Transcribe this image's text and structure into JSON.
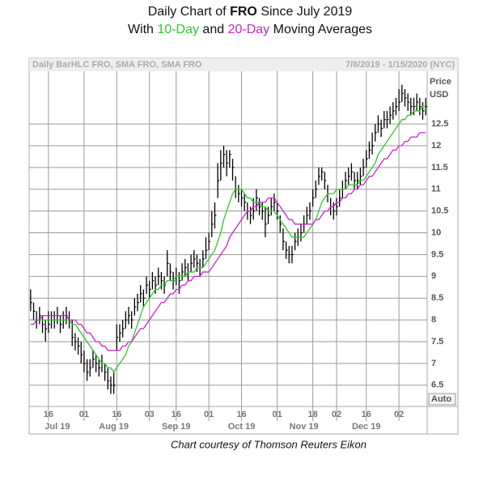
{
  "chart_data": {
    "type": "hlc",
    "title": {
      "lead": "Daily Chart of",
      "ticker": "FRO",
      "tail": "Since July 2019"
    },
    "subtitle": {
      "lead": "With",
      "mid": "and",
      "tail": "Moving Averages"
    },
    "header_left": "Daily BarHLC FRO, SMA FRO, SMA FRO",
    "header_right": "7/8/2019 - 1/15/2020 (NYC)",
    "y_unit_top": "Price",
    "y_unit": "USD",
    "auto_label": "Auto",
    "caption": "Chart courtesy of Thomson Reuters Eikon",
    "bar_color": "#000000",
    "grid": true,
    "ylim": [
      6.05,
      13.71
    ],
    "yticks": [
      6.5,
      7,
      7.5,
      8,
      8.5,
      9,
      9.5,
      10,
      10.5,
      11,
      11.5,
      12,
      12.5
    ],
    "categories": [
      null,
      null,
      null,
      null,
      null,
      null,
      "16",
      null,
      null,
      null,
      null,
      null,
      null,
      null,
      null,
      null,
      null,
      null,
      "01",
      null,
      null,
      null,
      null,
      null,
      null,
      null,
      null,
      null,
      null,
      "16",
      null,
      null,
      null,
      null,
      null,
      null,
      null,
      null,
      null,
      null,
      "03",
      null,
      null,
      null,
      null,
      null,
      null,
      null,
      null,
      "16",
      null,
      null,
      null,
      null,
      null,
      null,
      null,
      null,
      null,
      null,
      "01",
      null,
      null,
      null,
      null,
      null,
      null,
      null,
      null,
      null,
      null,
      "16",
      null,
      null,
      null,
      null,
      null,
      null,
      null,
      null,
      null,
      null,
      null,
      "01",
      null,
      null,
      null,
      null,
      null,
      null,
      null,
      null,
      null,
      null,
      null,
      "18",
      null,
      null,
      null,
      null,
      null,
      null,
      null,
      "02",
      null,
      null,
      null,
      null,
      null,
      null,
      null,
      null,
      null,
      "16",
      null,
      null,
      null,
      null,
      null,
      null,
      null,
      null,
      null,
      null,
      "02",
      null,
      null,
      null,
      null,
      null,
      null,
      null,
      null,
      null
    ],
    "months": [
      null,
      null,
      null,
      null,
      null,
      null,
      null,
      null,
      null,
      "Jul 19",
      null,
      null,
      null,
      null,
      null,
      null,
      null,
      null,
      null,
      null,
      null,
      null,
      null,
      null,
      null,
      null,
      null,
      null,
      "Aug 19",
      null,
      null,
      null,
      null,
      null,
      null,
      null,
      null,
      null,
      null,
      null,
      null,
      null,
      null,
      null,
      null,
      null,
      null,
      null,
      null,
      "Sep 19",
      null,
      null,
      null,
      null,
      null,
      null,
      null,
      null,
      null,
      null,
      null,
      null,
      null,
      null,
      null,
      null,
      null,
      null,
      null,
      null,
      null,
      "Oct 19",
      null,
      null,
      null,
      null,
      null,
      null,
      null,
      null,
      null,
      null,
      null,
      null,
      null,
      null,
      null,
      null,
      null,
      null,
      null,
      null,
      "Nov 19",
      null,
      null,
      null,
      null,
      null,
      null,
      null,
      null,
      null,
      null,
      null,
      null,
      null,
      null,
      null,
      null,
      null,
      null,
      null,
      null,
      "Dec 19",
      null,
      null,
      null,
      null,
      null,
      null,
      null,
      null,
      null,
      null,
      null,
      null,
      null,
      null,
      null,
      null,
      null,
      null,
      null,
      null
    ],
    "high": [
      8.7,
      8.4,
      8.2,
      8.3,
      8.1,
      8.0,
      8.2,
      8.2,
      8.2,
      8.3,
      8.1,
      8.2,
      8.3,
      8.2,
      8.0,
      7.7,
      7.6,
      7.5,
      7.3,
      7.1,
      7.1,
      7.3,
      7.2,
      7.1,
      7.2,
      7.0,
      6.9,
      6.7,
      6.8,
      7.9,
      7.9,
      8.0,
      8.2,
      8.3,
      8.2,
      8.5,
      8.6,
      8.8,
      8.7,
      9.0,
      8.9,
      9.1,
      9.0,
      9.2,
      9.1,
      9.0,
      9.6,
      9.3,
      9.1,
      9.2,
      9.1,
      9.3,
      9.4,
      9.3,
      9.5,
      9.6,
      9.5,
      9.4,
      9.6,
      9.9,
      10.0,
      10.5,
      10.7,
      11.6,
      11.9,
      12.0,
      11.9,
      11.9,
      11.7,
      11.3,
      11.1,
      11.0,
      10.9,
      10.7,
      10.6,
      10.8,
      11.0,
      10.8,
      10.7,
      10.6,
      10.6,
      10.8,
      10.9,
      10.7,
      10.4,
      10.1,
      9.8,
      9.7,
      9.7,
      10.0,
      10.1,
      10.2,
      10.4,
      10.6,
      10.7,
      11.0,
      11.2,
      11.5,
      11.5,
      11.4,
      11.1,
      10.8,
      10.7,
      10.8,
      11.0,
      11.2,
      11.4,
      11.5,
      11.6,
      11.4,
      11.4,
      11.5,
      11.7,
      11.9,
      12.1,
      12.3,
      12.5,
      12.7,
      12.6,
      12.8,
      12.8,
      12.9,
      13.0,
      13.1,
      13.3,
      13.4,
      13.3,
      13.2,
      13.1,
      13.1,
      13.2,
      13.1,
      13.0,
      13.1
    ],
    "low": [
      8.2,
      8.0,
      7.8,
      7.9,
      7.7,
      7.5,
      7.7,
      7.8,
      7.8,
      7.9,
      7.7,
      7.8,
      7.9,
      7.8,
      7.4,
      7.3,
      7.2,
      7.0,
      6.8,
      6.6,
      6.7,
      6.9,
      6.8,
      6.7,
      6.8,
      6.6,
      6.4,
      6.3,
      6.3,
      7.3,
      7.5,
      7.6,
      7.8,
      7.9,
      7.8,
      8.1,
      8.2,
      8.4,
      8.3,
      8.6,
      8.5,
      8.7,
      8.6,
      8.8,
      8.7,
      8.6,
      9.0,
      8.9,
      8.7,
      8.8,
      8.6,
      8.9,
      9.0,
      8.9,
      9.1,
      9.2,
      9.1,
      9.0,
      9.2,
      9.4,
      9.6,
      9.9,
      10.1,
      10.8,
      11.2,
      11.5,
      11.3,
      11.5,
      11.2,
      10.8,
      10.7,
      10.6,
      10.5,
      10.3,
      10.2,
      10.3,
      10.5,
      10.4,
      10.3,
      9.9,
      10.2,
      10.4,
      10.5,
      10.3,
      10.0,
      9.6,
      9.4,
      9.3,
      9.3,
      9.6,
      9.7,
      9.8,
      10.0,
      10.2,
      10.3,
      10.6,
      10.8,
      11.1,
      11.2,
      11.0,
      10.7,
      10.4,
      10.3,
      10.4,
      10.6,
      10.8,
      11.0,
      11.1,
      11.2,
      11.0,
      11.0,
      11.1,
      11.3,
      11.5,
      11.7,
      11.8,
      12.1,
      12.3,
      12.2,
      12.4,
      12.4,
      12.5,
      12.6,
      12.7,
      12.8,
      13.0,
      12.9,
      12.8,
      12.7,
      12.7,
      12.8,
      12.7,
      12.6,
      12.7
    ],
    "close": [
      8.4,
      8.2,
      8.0,
      8.1,
      7.9,
      7.8,
      7.9,
      8.0,
      8.0,
      8.1,
      7.9,
      8.0,
      8.1,
      8.0,
      7.6,
      7.5,
      7.4,
      7.2,
      7.0,
      6.8,
      6.9,
      7.1,
      7.0,
      6.9,
      7.0,
      6.8,
      6.6,
      6.5,
      6.5,
      7.6,
      7.7,
      7.8,
      8.0,
      8.1,
      8.0,
      8.3,
      8.4,
      8.6,
      8.5,
      8.8,
      8.7,
      8.9,
      8.8,
      9.0,
      8.9,
      8.8,
      9.3,
      9.1,
      8.9,
      9.0,
      8.9,
      9.1,
      9.2,
      9.1,
      9.3,
      9.4,
      9.3,
      9.2,
      9.4,
      9.6,
      9.8,
      10.2,
      10.4,
      11.2,
      11.6,
      11.8,
      11.6,
      11.8,
      11.5,
      11.0,
      10.9,
      10.8,
      10.7,
      10.5,
      10.4,
      10.5,
      10.8,
      10.6,
      10.5,
      10.2,
      10.4,
      10.6,
      10.7,
      10.5,
      10.2,
      9.8,
      9.6,
      9.5,
      9.5,
      9.8,
      9.9,
      10.0,
      10.2,
      10.4,
      10.5,
      10.8,
      11.0,
      11.3,
      11.4,
      11.2,
      10.9,
      10.6,
      10.5,
      10.6,
      10.8,
      11.0,
      11.2,
      11.3,
      11.4,
      11.2,
      11.2,
      11.3,
      11.5,
      11.7,
      11.9,
      12.0,
      12.3,
      12.5,
      12.4,
      12.6,
      12.6,
      12.7,
      12.8,
      12.9,
      13.0,
      13.2,
      13.1,
      13.0,
      12.9,
      12.9,
      13.0,
      12.9,
      12.8,
      12.9
    ],
    "series": [
      {
        "name": "10-Day",
        "color": "#2ec82e",
        "values": [
          8.0,
          8.0,
          8.0,
          8.0,
          8.0,
          8.0,
          8.0,
          8.0,
          8.0,
          8.0,
          8.0,
          8.0,
          8.0,
          8.0,
          7.9,
          7.9,
          7.8,
          7.7,
          7.6,
          7.5,
          7.4,
          7.3,
          7.2,
          7.1,
          7.0,
          7.0,
          6.9,
          6.9,
          6.8,
          6.9,
          7.0,
          7.1,
          7.2,
          7.4,
          7.5,
          7.7,
          7.9,
          8.1,
          8.3,
          8.4,
          8.5,
          8.6,
          8.7,
          8.7,
          8.8,
          8.8,
          8.9,
          8.9,
          8.9,
          9.0,
          9.0,
          9.0,
          9.0,
          9.1,
          9.1,
          9.1,
          9.2,
          9.2,
          9.2,
          9.3,
          9.4,
          9.5,
          9.6,
          9.8,
          10.0,
          10.3,
          10.5,
          10.7,
          10.9,
          11.0,
          11.0,
          11.0,
          10.9,
          10.8,
          10.8,
          10.7,
          10.7,
          10.7,
          10.6,
          10.6,
          10.5,
          10.5,
          10.5,
          10.4,
          10.3,
          10.2,
          10.1,
          10.0,
          9.9,
          9.9,
          9.9,
          9.9,
          9.9,
          10.0,
          10.1,
          10.2,
          10.3,
          10.5,
          10.7,
          10.8,
          10.9,
          10.9,
          10.9,
          11.0,
          11.0,
          11.0,
          11.0,
          11.1,
          11.1,
          11.1,
          11.1,
          11.2,
          11.2,
          11.3,
          11.4,
          11.5,
          11.6,
          11.8,
          11.9,
          12.0,
          12.1,
          12.2,
          12.3,
          12.4,
          12.5,
          12.6,
          12.6,
          12.7,
          12.7,
          12.8,
          12.8,
          12.8,
          12.9,
          12.9
        ]
      },
      {
        "name": "20-Day",
        "color": "#cc22cc",
        "values": [
          7.9,
          7.9,
          8.0,
          8.0,
          8.1,
          8.1,
          8.1,
          8.1,
          8.1,
          8.1,
          8.1,
          8.1,
          8.1,
          8.0,
          8.0,
          8.0,
          7.9,
          7.9,
          7.8,
          7.7,
          7.7,
          7.6,
          7.5,
          7.5,
          7.4,
          7.4,
          7.3,
          7.3,
          7.3,
          7.3,
          7.3,
          7.4,
          7.4,
          7.5,
          7.5,
          7.6,
          7.7,
          7.8,
          7.8,
          7.9,
          8.0,
          8.1,
          8.2,
          8.3,
          8.4,
          8.4,
          8.5,
          8.6,
          8.6,
          8.7,
          8.7,
          8.8,
          8.8,
          8.9,
          8.9,
          9.0,
          9.0,
          9.0,
          9.1,
          9.1,
          9.1,
          9.2,
          9.3,
          9.4,
          9.5,
          9.6,
          9.7,
          9.9,
          10.0,
          10.1,
          10.2,
          10.3,
          10.4,
          10.5,
          10.5,
          10.6,
          10.6,
          10.7,
          10.7,
          10.7,
          10.8,
          10.8,
          10.8,
          10.7,
          10.6,
          10.5,
          10.4,
          10.3,
          10.3,
          10.2,
          10.2,
          10.2,
          10.2,
          10.2,
          10.2,
          10.2,
          10.3,
          10.3,
          10.4,
          10.5,
          10.5,
          10.6,
          10.6,
          10.7,
          10.7,
          10.8,
          10.8,
          10.9,
          10.9,
          11.0,
          11.0,
          11.1,
          11.1,
          11.2,
          11.3,
          11.3,
          11.4,
          11.5,
          11.6,
          11.7,
          11.7,
          11.8,
          11.9,
          11.9,
          12.0,
          12.0,
          12.1,
          12.1,
          12.2,
          12.2,
          12.2,
          12.3,
          12.3,
          12.3
        ]
      }
    ]
  }
}
